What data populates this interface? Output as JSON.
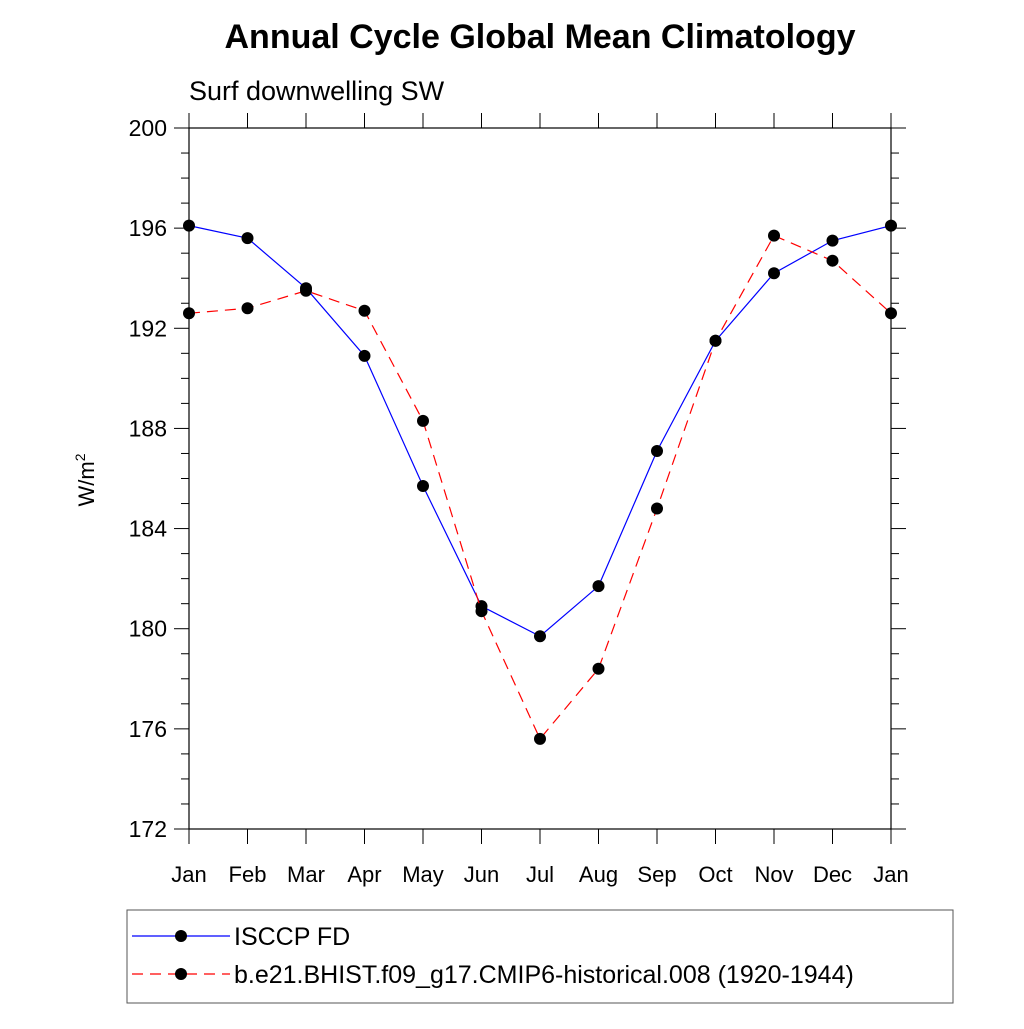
{
  "chart_data": {
    "type": "line",
    "title": "Annual Cycle Global Mean Climatology",
    "subtitle": "Surf downwelling SW",
    "ylabel": "W/m",
    "ylabel_superscript": "2",
    "xlabel": "",
    "categories": [
      "Jan",
      "Feb",
      "Mar",
      "Apr",
      "May",
      "Jun",
      "Jul",
      "Aug",
      "Sep",
      "Oct",
      "Nov",
      "Dec",
      "Jan"
    ],
    "ylim": [
      172,
      200
    ],
    "yticks": [
      172,
      176,
      180,
      184,
      188,
      192,
      196,
      200
    ],
    "grid": false,
    "legend_position": "bottom",
    "series": [
      {
        "name": "ISCCP FD",
        "color": "#0000ff",
        "dash": "solid",
        "marker": "filled-circle",
        "values": [
          196.1,
          195.6,
          193.6,
          190.9,
          185.7,
          180.9,
          179.7,
          181.7,
          187.1,
          191.5,
          194.2,
          195.5,
          196.1
        ]
      },
      {
        "name": "b.e21.BHIST.f09_g17.CMIP6-historical.008 (1920-1944)",
        "color": "#ff0000",
        "dash": "dashed",
        "marker": "filled-circle",
        "values": [
          192.6,
          192.8,
          193.5,
          192.7,
          188.3,
          180.7,
          175.6,
          178.4,
          184.8,
          191.5,
          195.7,
          194.7,
          192.6
        ]
      }
    ]
  }
}
